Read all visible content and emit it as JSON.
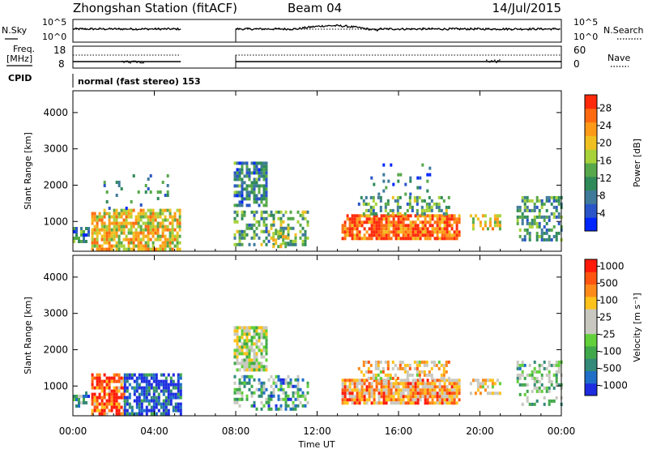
{
  "header": {
    "station": "Zhongshan Station (fitACF)",
    "beam": "Beam 04",
    "date": "14/Jul/2015"
  },
  "panel_labels": {
    "nsky": "N.Sky",
    "nsearch": "N.Search",
    "freq": "Freq.",
    "freq_unit": "[MHz]",
    "nave": "Nave",
    "cpid": "CPID",
    "cpid_text": "normal (fast stereo) 153"
  },
  "noise_ticks": {
    "top": "10^5",
    "bottom": "10^0"
  },
  "freq_ticks": [
    "18",
    "8"
  ],
  "nave_ticks": [
    "60",
    "0"
  ],
  "colors": {
    "power": [
      "#0026ff",
      "#2a55c8",
      "#3f7a9a",
      "#2f8a5a",
      "#57a84a",
      "#a8d23a",
      "#f0c020",
      "#ff9a18",
      "#ff6a10",
      "#ff2a0a"
    ],
    "velocity": [
      "#1e2de0",
      "#1f6ec8",
      "#338a78",
      "#3fa84a",
      "#62d03a",
      "#c8c8c0",
      "#c8c8c0",
      "#ffc21a",
      "#ff8a1a",
      "#ff5510",
      "#ff1a0a"
    ]
  },
  "chart_data": [
    {
      "type": "heatmap",
      "name": "power",
      "ylabel": "Slant Range [km]",
      "xlabel": "",
      "x_ticks": [
        "00:00",
        "04:00",
        "08:00",
        "12:00",
        "16:00",
        "20:00",
        "00:00"
      ],
      "x_tick_hours": [
        0,
        4,
        8,
        12,
        16,
        20,
        24
      ],
      "xlim_hours": [
        0,
        24
      ],
      "y_ticks": [
        1000,
        2000,
        3000,
        4000
      ],
      "ylim_km": [
        180,
        4600
      ],
      "colorbar": {
        "label": "Power [dB]",
        "ticks": [
          4,
          8,
          12,
          16,
          20,
          24,
          28
        ],
        "range": [
          0,
          31
        ]
      },
      "blocks": [
        {
          "t0": 0.0,
          "t1": 0.8,
          "r0": 450,
          "r1": 850,
          "level": 0.3,
          "density": 0.55
        },
        {
          "t0": 0.9,
          "t1": 5.3,
          "r0": 250,
          "r1": 1350,
          "level": 0.65,
          "density": 0.75
        },
        {
          "t0": 1.5,
          "t1": 4.8,
          "r0": 1350,
          "r1": 2300,
          "level": 0.3,
          "density": 0.1
        },
        {
          "t0": 7.9,
          "t1": 9.5,
          "r0": 1400,
          "r1": 2650,
          "level": 0.3,
          "density": 0.7
        },
        {
          "t0": 7.9,
          "t1": 11.5,
          "r0": 350,
          "r1": 1300,
          "level": 0.4,
          "density": 0.45
        },
        {
          "t0": 9.8,
          "t1": 10.6,
          "r0": 350,
          "r1": 800,
          "level": 0.55,
          "density": 0.6
        },
        {
          "t0": 13.2,
          "t1": 19.0,
          "r0": 550,
          "r1": 1200,
          "level": 0.85,
          "density": 0.85
        },
        {
          "t0": 14.0,
          "t1": 18.5,
          "r0": 1200,
          "r1": 1700,
          "level": 0.4,
          "density": 0.45
        },
        {
          "t0": 14.5,
          "t1": 17.5,
          "r0": 1700,
          "r1": 2600,
          "level": 0.25,
          "density": 0.1
        },
        {
          "t0": 19.5,
          "t1": 21.0,
          "r0": 800,
          "r1": 1200,
          "level": 0.65,
          "density": 0.55
        },
        {
          "t0": 21.8,
          "t1": 24.0,
          "r0": 500,
          "r1": 1700,
          "level": 0.35,
          "density": 0.45
        }
      ]
    },
    {
      "type": "heatmap",
      "name": "velocity",
      "ylabel": "Slant Range [km]",
      "xlabel": "Time UT",
      "x_ticks": [
        "00:00",
        "04:00",
        "08:00",
        "12:00",
        "16:00",
        "20:00",
        "00:00"
      ],
      "x_tick_hours": [
        0,
        4,
        8,
        12,
        16,
        20,
        24
      ],
      "xlim_hours": [
        0,
        24
      ],
      "y_ticks": [
        1000,
        2000,
        3000,
        4000
      ],
      "ylim_km": [
        180,
        4600
      ],
      "colorbar": {
        "label": "Velocity [m s⁻¹]",
        "ticks": [
          1000,
          500,
          100,
          25,
          -25,
          -100,
          -500,
          -1000
        ],
        "range": [
          -1200,
          1200
        ]
      },
      "blocks": [
        {
          "t0": 0.0,
          "t1": 0.8,
          "r0": 450,
          "r1": 850,
          "level": 0.3,
          "density": 0.55
        },
        {
          "t0": 0.9,
          "t1": 2.5,
          "r0": 250,
          "r1": 1350,
          "level": 0.85,
          "density": 0.75
        },
        {
          "t0": 2.5,
          "t1": 5.3,
          "r0": 250,
          "r1": 1350,
          "level": 0.1,
          "density": 0.75
        },
        {
          "t0": 7.9,
          "t1": 9.5,
          "r0": 1400,
          "r1": 2650,
          "level": 0.5,
          "density": 0.7
        },
        {
          "t0": 7.9,
          "t1": 11.5,
          "r0": 350,
          "r1": 1300,
          "level": 0.3,
          "density": 0.45
        },
        {
          "t0": 13.2,
          "t1": 19.0,
          "r0": 550,
          "r1": 1200,
          "level": 0.75,
          "density": 0.85
        },
        {
          "t0": 14.0,
          "t1": 18.5,
          "r0": 1200,
          "r1": 1700,
          "level": 0.65,
          "density": 0.45
        },
        {
          "t0": 19.5,
          "t1": 21.0,
          "r0": 800,
          "r1": 1200,
          "level": 0.6,
          "density": 0.55
        },
        {
          "t0": 21.8,
          "t1": 24.0,
          "r0": 500,
          "r1": 1700,
          "level": 0.4,
          "density": 0.45
        }
      ]
    }
  ]
}
